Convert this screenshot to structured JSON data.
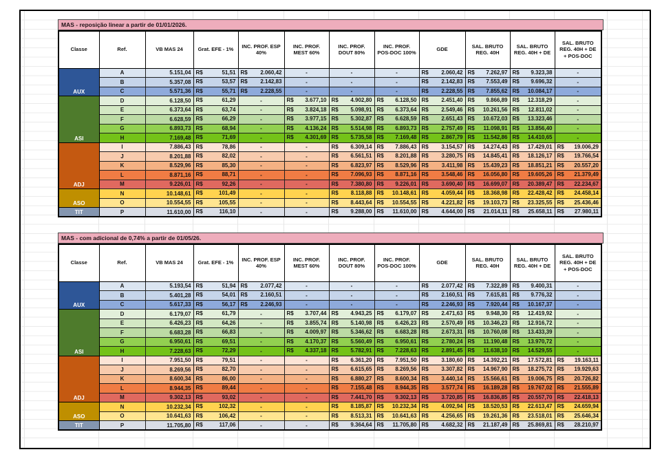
{
  "headers": [
    "Classe",
    "Ref.",
    "VB MAS 24",
    "Grat. EFE - 1%",
    "INC. PROF.  ESP\n40%",
    "INC. PROF.\nMEST 60%",
    "INC. PROF.\nDOUT 80%",
    "INC. PROF.\nPOS-DOC 100%",
    "GDE",
    "SAL. BRUTO\nREG. 40H",
    "SAL. BRUTO\nREG. 40H + DE",
    "SAL. BRUTO\nREG. 40H + DE\n+ POS-DOC"
  ],
  "palette": {
    "frame_border": "#000000",
    "grid_line": "#e6e6e6",
    "title_bg": "#eeadbc",
    "title_text": "#201418",
    "class_text": "#ffffff",
    "class_colors": {
      "AUX": "#2e5697",
      "ASI": "#4e7b2c",
      "ADJ": "#c45911",
      "ASO": "#bf8f00",
      "TIT": "#8496b0"
    },
    "row_colors": {
      "A": "#dbe5f1",
      "B": "#c6d5ea",
      "C": "#8eaadb",
      "D": "#e2efda",
      "E": "#d3e8c3",
      "F": "#bcdba4",
      "G": "#92d050",
      "H": "#74c218",
      "I": "#fce4d6",
      "J": "#f8cbad",
      "K": "#f4b183",
      "L": "#f07c44",
      "M": "#e0695f",
      "N": "#ffd34f",
      "O": "#ffe590",
      "P": "#d9dde6"
    }
  },
  "tables": [
    {
      "title": "MAS - reposição linear  a partir de 01/01/2026.",
      "groups": [
        {
          "label": "AUX",
          "start": 0,
          "span": 3
        },
        {
          "label": "ASI",
          "start": 3,
          "span": 5
        },
        {
          "label": "ADJ",
          "start": 8,
          "span": 5
        },
        {
          "label": "ASO",
          "start": 13,
          "span": 2
        },
        {
          "label": "TIT",
          "start": 15,
          "span": 1
        }
      ],
      "rows": [
        {
          "ref": "A",
          "vb": "5.151,04",
          "cells": [
            "R$ 51,51",
            "R$ 2.060,42",
            "-",
            "-",
            "-",
            "R$ 2.060,42",
            "R$ 7.262,97",
            "R$ 9.323,38",
            "-"
          ]
        },
        {
          "ref": "B",
          "vb": "5.357,08",
          "cells": [
            "R$ 53,57",
            "R$ 2.142,83",
            "-",
            "-",
            "-",
            "R$ 2.142,83",
            "R$ 7.553,49",
            "R$ 9.696,32",
            "-"
          ]
        },
        {
          "ref": "C",
          "vb": "5.571,36",
          "cells": [
            "R$ 55,71",
            "R$ 2.228,55",
            "-",
            "-",
            "-",
            "R$ 2.228,55",
            "R$ 7.855,62",
            "R$ 10.084,17",
            "-"
          ]
        },
        {
          "ref": "D",
          "vb": "6.128,50",
          "cells": [
            "R$ 61,29",
            "-",
            "R$ 3.677,10",
            "R$ 4.902,80",
            "R$ 6.128,50",
            "R$ 2.451,40",
            "R$ 9.866,89",
            "R$ 12.318,29",
            "-"
          ]
        },
        {
          "ref": "E",
          "vb": "6.373,64",
          "cells": [
            "R$ 63,74",
            "-",
            "R$ 3.824,18",
            "R$ 5.098,91",
            "R$ 6.373,64",
            "R$ 2.549,46",
            "R$ 10.261,56",
            "R$ 12.811,02",
            "-"
          ]
        },
        {
          "ref": "F",
          "vb": "6.628,59",
          "cells": [
            "R$ 66,29",
            "-",
            "R$ 3.977,15",
            "R$ 5.302,87",
            "R$ 6.628,59",
            "R$ 2.651,43",
            "R$ 10.672,03",
            "R$ 13.323,46",
            "-"
          ]
        },
        {
          "ref": "G",
          "vb": "6.893,73",
          "cells": [
            "R$ 68,94",
            "-",
            "R$ 4.136,24",
            "R$ 5.514,98",
            "R$ 6.893,73",
            "R$ 2.757,49",
            "R$ 11.098,91",
            "R$ 13.856,40",
            "-"
          ]
        },
        {
          "ref": "H",
          "vb": "7.169,48",
          "cells": [
            "R$ 71,69",
            "-",
            "R$ 4.301,69",
            "R$ 5.735,58",
            "R$ 7.169,48",
            "R$ 2.867,79",
            "R$ 11.542,86",
            "R$ 14.410,65",
            "-"
          ]
        },
        {
          "ref": "I",
          "vb": "7.886,43",
          "cells": [
            "R$ 78,86",
            "-",
            "-",
            "R$ 6.309,14",
            "R$ 7.886,43",
            "R$ 3.154,57",
            "R$ 14.274,43",
            "R$ 17.429,01",
            "R$ 19.006,29"
          ]
        },
        {
          "ref": "J",
          "vb": "8.201,88",
          "cells": [
            "R$ 82,02",
            "-",
            "-",
            "R$ 6.561,51",
            "R$ 8.201,88",
            "R$ 3.280,75",
            "R$ 14.845,41",
            "R$ 18.126,17",
            "R$ 19.766,54"
          ]
        },
        {
          "ref": "K",
          "vb": "8.529,96",
          "cells": [
            "R$ 85,30",
            "-",
            "-",
            "R$ 6.823,97",
            "R$ 8.529,96",
            "R$ 3.411,98",
            "R$ 15.439,23",
            "R$ 18.851,21",
            "R$ 20.557,20"
          ]
        },
        {
          "ref": "L",
          "vb": "8.871,16",
          "cells": [
            "R$ 88,71",
            "-",
            "-",
            "R$ 7.096,93",
            "R$ 8.871,16",
            "R$ 3.548,46",
            "R$ 16.056,80",
            "R$ 19.605,26",
            "R$ 21.379,49"
          ]
        },
        {
          "ref": "M",
          "vb": "9.226,01",
          "cells": [
            "R$ 92,26",
            "-",
            "-",
            "R$ 7.380,80",
            "R$ 9.226,01",
            "R$ 3.690,40",
            "R$ 16.699,07",
            "R$ 20.389,47",
            "R$ 22.234,67"
          ]
        },
        {
          "ref": "N",
          "vb": "10.148,61",
          "cells": [
            "R$ 101,49",
            "-",
            "-",
            "R$ 8.118,88",
            "R$ 10.148,61",
            "R$ 4.059,44",
            "R$ 18.368,98",
            "R$ 22.428,42",
            "R$ 24.458,14"
          ]
        },
        {
          "ref": "O",
          "vb": "10.554,55",
          "cells": [
            "R$ 105,55",
            "-",
            "-",
            "R$ 8.443,64",
            "R$ 10.554,55",
            "R$ 4.221,82",
            "R$ 19.103,73",
            "R$ 23.325,55",
            "R$ 25.436,46"
          ]
        },
        {
          "ref": "P",
          "vb": "11.610,00",
          "cells": [
            "R$ 116,10",
            "-",
            "-",
            "R$ 9.288,00",
            "R$ 11.610,00",
            "R$ 4.644,00",
            "R$ 21.014,11",
            "R$ 25.658,11",
            "R$ 27.980,11"
          ]
        }
      ]
    },
    {
      "title": "MAS -  com adicional de 0,74% a partir de 01/05/26.",
      "groups": [
        {
          "label": "AUX",
          "start": 0,
          "span": 3
        },
        {
          "label": "ASI",
          "start": 3,
          "span": 5
        },
        {
          "label": "ADJ",
          "start": 8,
          "span": 5
        },
        {
          "label": "ASO",
          "start": 13,
          "span": 2
        },
        {
          "label": "TIT",
          "start": 15,
          "span": 1
        }
      ],
      "rows": [
        {
          "ref": "A",
          "vb": "5.193,54",
          "cells": [
            "R$ 51,94",
            "R$ 2.077,42",
            "-",
            "-",
            "-",
            "R$ 2.077,42",
            "R$ 7.322,89",
            "R$ 9.400,31",
            "-"
          ]
        },
        {
          "ref": "B",
          "vb": "5.401,28",
          "cells": [
            "R$ 54,01",
            "R$ 2.160,51",
            "-",
            "-",
            "-",
            "R$ 2.160,51",
            "R$ 7.615,81",
            "R$ 9.776,32",
            "-"
          ]
        },
        {
          "ref": "C",
          "vb": "5.617,33",
          "cells": [
            "R$ 56,17",
            "R$ 2.246,93",
            "-",
            "-",
            "-",
            "R$ 2.246,93",
            "R$ 7.920,44",
            "R$ 10.167,37",
            "-"
          ]
        },
        {
          "ref": "D",
          "vb": "6.179,07",
          "cells": [
            "R$ 61,79",
            "-",
            "R$ 3.707,44",
            "R$ 4.943,25",
            "R$ 6.179,07",
            "R$ 2.471,63",
            "R$ 9.948,30",
            "R$ 12.419,92",
            "-"
          ]
        },
        {
          "ref": "E",
          "vb": "6.426,23",
          "cells": [
            "R$ 64,26",
            "-",
            "R$ 3.855,74",
            "R$ 5.140,98",
            "R$ 6.426,23",
            "R$ 2.570,49",
            "R$ 10.346,23",
            "R$ 12.916,72",
            "-"
          ]
        },
        {
          "ref": "F",
          "vb": "6.683,28",
          "cells": [
            "R$ 66,83",
            "-",
            "R$ 4.009,97",
            "R$ 5.346,62",
            "R$ 6.683,28",
            "R$ 2.673,31",
            "R$ 10.760,08",
            "R$ 13.433,39",
            "-"
          ]
        },
        {
          "ref": "G",
          "vb": "6.950,61",
          "cells": [
            "R$ 69,51",
            "-",
            "R$ 4.170,37",
            "R$ 5.560,49",
            "R$ 6.950,61",
            "R$ 2.780,24",
            "R$ 11.190,48",
            "R$ 13.970,72",
            "-"
          ]
        },
        {
          "ref": "H",
          "vb": "7.228,63",
          "cells": [
            "R$ 72,29",
            "-",
            "R$ 4.337,18",
            "R$ 5.782,91",
            "R$ 7.228,63",
            "R$ 2.891,45",
            "R$ 11.638,10",
            "R$ 14.529,55",
            "-"
          ]
        },
        {
          "ref": "I",
          "vb": "7.951,50",
          "cells": [
            "R$ 79,51",
            "-",
            "-",
            "R$ 6.361,20",
            "R$ 7.951,50",
            "R$ 3.180,60",
            "R$ 14.392,21",
            "R$ 17.572,81",
            "R$ 19.163,11"
          ]
        },
        {
          "ref": "J",
          "vb": "8.269,56",
          "cells": [
            "R$ 82,70",
            "-",
            "-",
            "R$ 6.615,65",
            "R$ 8.269,56",
            "R$ 3.307,82",
            "R$ 14.967,90",
            "R$ 18.275,72",
            "R$ 19.929,63"
          ]
        },
        {
          "ref": "K",
          "vb": "8.600,34",
          "cells": [
            "R$ 86,00",
            "-",
            "-",
            "R$ 6.880,27",
            "R$ 8.600,34",
            "R$ 3.440,14",
            "R$ 15.566,61",
            "R$ 19.006,75",
            "R$ 20.726,82"
          ]
        },
        {
          "ref": "L",
          "vb": "8.944,35",
          "cells": [
            "R$ 89,44",
            "-",
            "-",
            "R$ 7.155,48",
            "R$ 8.944,35",
            "R$ 3.577,74",
            "R$ 16.189,28",
            "R$ 19.767,02",
            "R$ 21.555,89"
          ]
        },
        {
          "ref": "M",
          "vb": "9.302,13",
          "cells": [
            "R$ 93,02",
            "-",
            "-",
            "R$ 7.441,70",
            "R$ 9.302,13",
            "R$ 3.720,85",
            "R$ 16.836,85",
            "R$ 20.557,70",
            "R$ 22.418,13"
          ]
        },
        {
          "ref": "N",
          "vb": "10.232,34",
          "cells": [
            "R$ 102,32",
            "-",
            "-",
            "R$ 8.185,87",
            "R$ 10.232,34",
            "R$ 4.092,94",
            "R$ 18.520,53",
            "R$ 22.613,47",
            "R$ 24.659,94"
          ]
        },
        {
          "ref": "O",
          "vb": "10.641,63",
          "cells": [
            "R$ 106,42",
            "-",
            "-",
            "R$ 8.513,31",
            "R$ 10.641,63",
            "R$ 4.256,65",
            "R$ 19.261,36",
            "R$ 23.518,01",
            "R$ 25.646,34"
          ]
        },
        {
          "ref": "P",
          "vb": "11.705,80",
          "cells": [
            "R$ 117,06",
            "-",
            "-",
            "R$ 9.364,64",
            "R$ 11.705,80",
            "R$ 4.682,32",
            "R$ 21.187,49",
            "R$ 25.869,81",
            "R$ 28.210,97"
          ]
        }
      ]
    }
  ]
}
